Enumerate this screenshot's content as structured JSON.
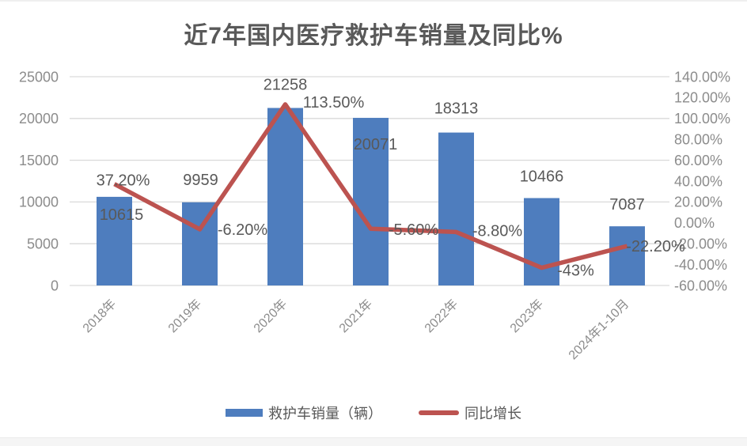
{
  "page": {
    "background": "#ffffff",
    "top_border_color": "#efefef",
    "bottom_strip_color": "#f5f5f5"
  },
  "chart_data": {
    "type": "bar",
    "subtype": "bar+line combo, dual axis",
    "title": "近7年国内医疗救护车销量及同比%",
    "categories": [
      "2018年",
      "2019年",
      "2020年",
      "2021年",
      "2022年",
      "2023年",
      "2024年1-10月"
    ],
    "series": [
      {
        "name": "救护车销量（辆）",
        "type": "bar",
        "axis": "left",
        "color": "#4e7dbe",
        "values": [
          10615,
          9959,
          21258,
          20071,
          18313,
          10466,
          7087
        ],
        "data_labels": [
          "10615",
          "9959",
          "21258",
          "20071",
          "18313",
          "10466",
          "7087"
        ]
      },
      {
        "name": "同比增长",
        "type": "line",
        "axis": "right",
        "color": "#bc5350",
        "values": [
          37.2,
          -6.2,
          113.5,
          -5.6,
          -8.8,
          -43,
          -22.2
        ],
        "data_labels": [
          "37.20%",
          "-6.20%",
          "113.50%",
          "-5.60%",
          "-8.80%",
          "-43%",
          "-22.20%"
        ]
      }
    ],
    "left_axis": {
      "min": 0,
      "max": 25000,
      "step": 5000,
      "ticks": [
        "25000",
        "20000",
        "15000",
        "10000",
        "5000",
        "0"
      ]
    },
    "right_axis": {
      "min": -60,
      "max": 140,
      "step": 20,
      "ticks": [
        "140.00%",
        "120.00%",
        "100.00%",
        "80.00%",
        "60.00%",
        "40.00%",
        "20.00%",
        "0.00%",
        "-20.00%",
        "-40.00%",
        "-60.00%"
      ]
    },
    "grid": "horizontal gridlines at left-axis ticks",
    "legend_position": "bottom",
    "x_label_rotation_deg": -45,
    "label_offsets": {
      "bar": [
        [
          9,
          22
        ],
        [
          1,
          -29
        ],
        [
          0,
          -30
        ],
        [
          6,
          33
        ],
        [
          0,
          -31
        ],
        [
          0,
          -28
        ],
        [
          0,
          -28
        ]
      ],
      "line": [
        [
          11,
          -5
        ],
        [
          54,
          0
        ],
        [
          61,
          -3
        ],
        [
          54,
          1
        ],
        [
          52,
          -2
        ],
        [
          43,
          3
        ],
        [
          36,
          0
        ]
      ]
    },
    "colors": {
      "grid": "#d9d9d9",
      "axis_labels": "#8c8c8c",
      "data_labels": "#595959",
      "title": "#595959"
    }
  }
}
